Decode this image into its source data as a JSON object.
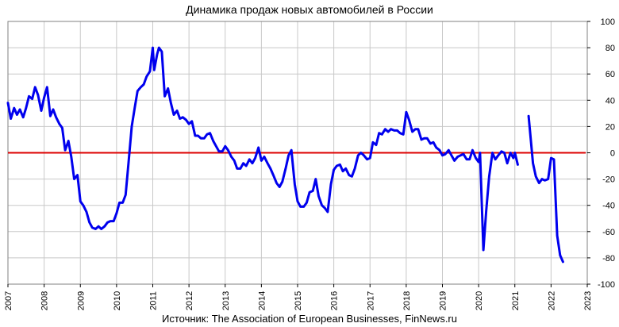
{
  "chart_data": {
    "type": "line",
    "title": "Динамика продаж новых автомобилей в России",
    "source": "Источник: The Association of European Businesses, FinNews.ru",
    "xlabel": "",
    "ylabel": "",
    "x_tick_labels": [
      "2007",
      "2008",
      "2009",
      "2010",
      "2011",
      "2012",
      "2013",
      "2014",
      "2015",
      "2016",
      "2017",
      "2018",
      "2019",
      "2020",
      "2021",
      "2022",
      "2023"
    ],
    "y_tick_labels": [
      "100",
      "80",
      "60",
      "40",
      "20",
      "0",
      "-20",
      "-40",
      "-60",
      "-80",
      "-100"
    ],
    "xlim": [
      2007,
      2023
    ],
    "ylim": [
      -100,
      100
    ],
    "y_axis_side": "right",
    "grid": true,
    "colors": {
      "series": "#0000ee",
      "zero_line": "#dd0000",
      "grid": "#c8c8c8"
    },
    "zero_line": 0,
    "series": [
      {
        "segments": [
          [
            [
              2007.0,
              38
            ],
            [
              2007.08,
              26
            ],
            [
              2007.17,
              34
            ],
            [
              2007.25,
              29
            ],
            [
              2007.33,
              33
            ],
            [
              2007.42,
              27
            ],
            [
              2007.5,
              34
            ],
            [
              2007.58,
              43
            ],
            [
              2007.67,
              41
            ],
            [
              2007.75,
              50
            ],
            [
              2007.83,
              44
            ],
            [
              2007.92,
              32
            ],
            [
              2008.0,
              42
            ],
            [
              2008.08,
              50
            ],
            [
              2008.17,
              28
            ],
            [
              2008.25,
              33
            ],
            [
              2008.33,
              27
            ],
            [
              2008.42,
              22
            ],
            [
              2008.5,
              19
            ],
            [
              2008.58,
              2
            ],
            [
              2008.67,
              9
            ],
            [
              2008.75,
              -3
            ],
            [
              2008.83,
              -20
            ],
            [
              2008.92,
              -17
            ],
            [
              2009.0,
              -37
            ],
            [
              2009.08,
              -40
            ],
            [
              2009.17,
              -45
            ],
            [
              2009.25,
              -53
            ],
            [
              2009.33,
              -57
            ],
            [
              2009.42,
              -58
            ],
            [
              2009.5,
              -56
            ],
            [
              2009.58,
              -58
            ],
            [
              2009.67,
              -56
            ],
            [
              2009.75,
              -53
            ],
            [
              2009.83,
              -52
            ],
            [
              2009.92,
              -52
            ],
            [
              2010.0,
              -46
            ],
            [
              2010.08,
              -38
            ],
            [
              2010.17,
              -38
            ],
            [
              2010.25,
              -32
            ],
            [
              2010.33,
              -8
            ],
            [
              2010.42,
              20
            ],
            [
              2010.5,
              34
            ],
            [
              2010.58,
              47
            ],
            [
              2010.67,
              50
            ],
            [
              2010.75,
              52
            ],
            [
              2010.83,
              58
            ],
            [
              2010.92,
              62
            ],
            [
              2011.0,
              80
            ],
            [
              2011.04,
              63
            ],
            [
              2011.12,
              75
            ],
            [
              2011.17,
              80
            ],
            [
              2011.25,
              77
            ],
            [
              2011.33,
              43
            ],
            [
              2011.42,
              49
            ],
            [
              2011.5,
              38
            ],
            [
              2011.58,
              29
            ],
            [
              2011.67,
              32
            ],
            [
              2011.75,
              26
            ],
            [
              2011.83,
              27
            ],
            [
              2011.92,
              25
            ],
            [
              2012.0,
              22
            ],
            [
              2012.08,
              24
            ],
            [
              2012.17,
              13
            ],
            [
              2012.25,
              13
            ],
            [
              2012.33,
              11
            ],
            [
              2012.42,
              11
            ],
            [
              2012.5,
              14
            ],
            [
              2012.58,
              15
            ],
            [
              2012.67,
              9
            ],
            [
              2012.75,
              5
            ],
            [
              2012.83,
              1
            ],
            [
              2012.92,
              1
            ],
            [
              2013.0,
              5
            ],
            [
              2013.08,
              2
            ],
            [
              2013.17,
              -3
            ],
            [
              2013.25,
              -6
            ],
            [
              2013.33,
              -12
            ],
            [
              2013.42,
              -12
            ],
            [
              2013.5,
              -8
            ],
            [
              2013.58,
              -10
            ],
            [
              2013.67,
              -5
            ],
            [
              2013.75,
              -8
            ],
            [
              2013.83,
              -4
            ],
            [
              2013.92,
              4
            ],
            [
              2014.0,
              -6
            ],
            [
              2014.08,
              -3
            ],
            [
              2014.17,
              -8
            ],
            [
              2014.25,
              -12
            ],
            [
              2014.33,
              -17
            ],
            [
              2014.42,
              -23
            ],
            [
              2014.5,
              -26
            ],
            [
              2014.58,
              -22
            ],
            [
              2014.67,
              -12
            ],
            [
              2014.75,
              -2
            ],
            [
              2014.83,
              2
            ],
            [
              2014.92,
              -24
            ],
            [
              2015.0,
              -37
            ],
            [
              2015.08,
              -41
            ],
            [
              2015.17,
              -41
            ],
            [
              2015.25,
              -38
            ],
            [
              2015.33,
              -30
            ],
            [
              2015.42,
              -29
            ],
            [
              2015.5,
              -20
            ],
            [
              2015.58,
              -33
            ],
            [
              2015.67,
              -40
            ],
            [
              2015.75,
              -42
            ],
            [
              2015.83,
              -45
            ],
            [
              2015.92,
              -24
            ],
            [
              2016.0,
              -13
            ],
            [
              2016.08,
              -10
            ],
            [
              2016.17,
              -9
            ],
            [
              2016.25,
              -14
            ],
            [
              2016.33,
              -12
            ],
            [
              2016.42,
              -17
            ],
            [
              2016.5,
              -18
            ],
            [
              2016.58,
              -12
            ],
            [
              2016.67,
              -2
            ],
            [
              2016.75,
              0
            ],
            [
              2016.83,
              -2
            ],
            [
              2016.92,
              -5
            ],
            [
              2017.0,
              -4
            ],
            [
              2017.08,
              8
            ],
            [
              2017.17,
              6
            ],
            [
              2017.25,
              15
            ],
            [
              2017.33,
              14
            ],
            [
              2017.42,
              18
            ],
            [
              2017.5,
              16
            ],
            [
              2017.58,
              18
            ],
            [
              2017.67,
              17
            ],
            [
              2017.75,
              17
            ],
            [
              2017.83,
              15
            ],
            [
              2017.92,
              14
            ],
            [
              2018.0,
              31
            ],
            [
              2018.08,
              25
            ],
            [
              2018.17,
              16
            ],
            [
              2018.25,
              18
            ],
            [
              2018.33,
              18
            ],
            [
              2018.42,
              10
            ],
            [
              2018.5,
              11
            ],
            [
              2018.58,
              11
            ],
            [
              2018.67,
              7
            ],
            [
              2018.75,
              8
            ],
            [
              2018.83,
              4
            ],
            [
              2018.92,
              2
            ],
            [
              2019.0,
              -2
            ],
            [
              2019.08,
              -1
            ],
            [
              2019.17,
              2
            ],
            [
              2019.25,
              -2
            ],
            [
              2019.33,
              -6
            ],
            [
              2019.42,
              -3
            ],
            [
              2019.5,
              -2
            ],
            [
              2019.58,
              -1
            ],
            [
              2019.67,
              -5
            ],
            [
              2019.75,
              -5
            ],
            [
              2019.83,
              2
            ],
            [
              2019.92,
              -4
            ],
            [
              2020.0,
              -7
            ],
            [
              2020.04,
              0
            ],
            [
              2020.13,
              -74
            ],
            [
              2020.21,
              -44
            ],
            [
              2020.29,
              -18
            ],
            [
              2020.38,
              0
            ],
            [
              2020.46,
              -5
            ],
            [
              2020.54,
              -2
            ],
            [
              2020.63,
              1
            ],
            [
              2020.71,
              0
            ],
            [
              2020.79,
              -8
            ],
            [
              2020.88,
              0
            ],
            [
              2020.96,
              -4
            ],
            [
              2021.0,
              0
            ],
            [
              2021.08,
              -9
            ]
          ],
          [
            [
              2021.38,
              28
            ],
            [
              2021.5,
              -8
            ],
            [
              2021.58,
              -18
            ],
            [
              2021.67,
              -23
            ],
            [
              2021.75,
              -20
            ],
            [
              2021.83,
              -21
            ],
            [
              2021.92,
              -20
            ],
            [
              2022.0,
              -4
            ],
            [
              2022.08,
              -5
            ],
            [
              2022.17,
              -63
            ],
            [
              2022.25,
              -78
            ],
            [
              2022.33,
              -83
            ]
          ]
        ]
      }
    ]
  }
}
